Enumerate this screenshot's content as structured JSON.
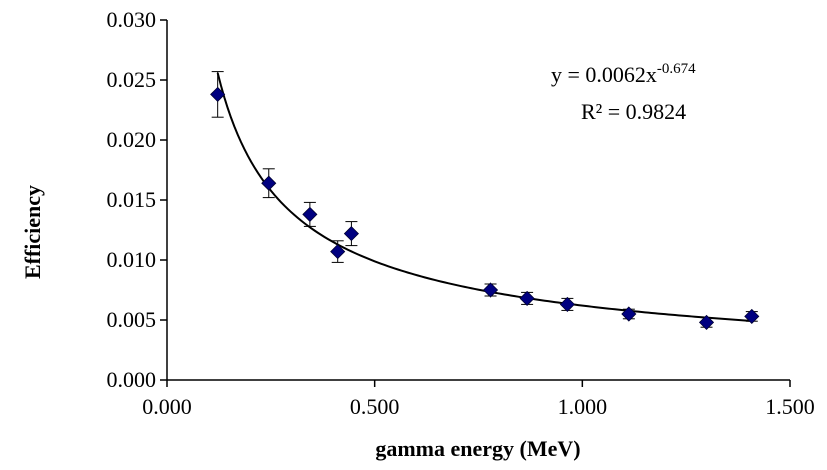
{
  "chart_data": {
    "type": "scatter",
    "title": "",
    "xlabel": "gamma energy (MeV)",
    "ylabel": "Efficiency",
    "xlim": [
      0,
      1.5
    ],
    "ylim": [
      0,
      0.03
    ],
    "xticks": [
      0,
      0.5,
      1.0,
      1.5
    ],
    "xtick_labels": [
      "0.000",
      "0.500",
      "1.000",
      "1.500"
    ],
    "yticks": [
      0,
      0.005,
      0.01,
      0.015,
      0.02,
      0.025,
      0.03
    ],
    "ytick_labels": [
      "0.000",
      "0.005",
      "0.010",
      "0.015",
      "0.020",
      "0.025",
      "0.030"
    ],
    "grid": false,
    "legend": "none",
    "marker": "diamond",
    "marker_color": "#000080",
    "points": [
      {
        "x": 0.122,
        "y": 0.0238,
        "err": 0.0019
      },
      {
        "x": 0.245,
        "y": 0.0164,
        "err": 0.0012
      },
      {
        "x": 0.344,
        "y": 0.0138,
        "err": 0.001
      },
      {
        "x": 0.411,
        "y": 0.0107,
        "err": 0.0009
      },
      {
        "x": 0.444,
        "y": 0.0122,
        "err": 0.001
      },
      {
        "x": 0.779,
        "y": 0.0075,
        "err": 0.0005
      },
      {
        "x": 0.867,
        "y": 0.0068,
        "err": 0.0005
      },
      {
        "x": 0.964,
        "y": 0.0063,
        "err": 0.0005
      },
      {
        "x": 1.112,
        "y": 0.0055,
        "err": 0.0004
      },
      {
        "x": 1.299,
        "y": 0.0048,
        "err": 0.0004
      },
      {
        "x": 1.408,
        "y": 0.0053,
        "err": 0.0004
      }
    ],
    "trendline": {
      "kind": "power",
      "coefficient": 0.0062,
      "exponent": -0.674,
      "x_range": [
        0.122,
        1.408
      ],
      "equation_text": "y = 0.0062x",
      "equation_exponent": "-0.674",
      "r2_text": "R² = 0.9824"
    }
  }
}
